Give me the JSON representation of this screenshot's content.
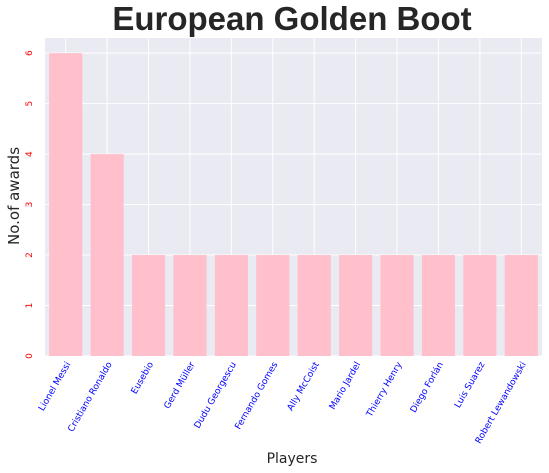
{
  "chart_data": {
    "type": "bar",
    "title": "European Golden Boot",
    "xlabel": "Players",
    "ylabel": "No.of awards",
    "categories": [
      "Lionel Messi",
      "Cristiano Ronaldo",
      "Eusebio",
      "Gerd Müller",
      "Dudu Georgescu",
      "Fernando Gomes",
      "Ally McCoist",
      "Mario Jardel",
      "Thierry Henry",
      "Diego Forlán",
      "Luis Suarez",
      "Robert Lewandowski"
    ],
    "values": [
      6,
      4,
      2,
      2,
      2,
      2,
      2,
      2,
      2,
      2,
      2,
      2
    ],
    "yticks": [
      "0",
      "1",
      "2",
      "3",
      "4",
      "5",
      "6"
    ],
    "ylim": [
      0,
      6.3
    ],
    "grid": true,
    "colors": {
      "bar": "#ffc0cb",
      "plot_background": "#eaeaf2",
      "grid": "#ffffff",
      "ytick_label": "#ff0000",
      "xtick_label": "#0000ff",
      "text": "#262626"
    }
  }
}
